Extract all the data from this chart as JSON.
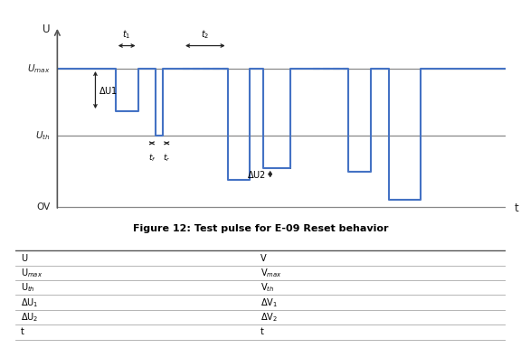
{
  "title": "Figure 12: Test pulse for E-09 Reset behavior",
  "umax": 0.78,
  "uth": 0.4,
  "line_color": "#4472C4",
  "axis_color": "#555555",
  "bg_color": "#ffffff",
  "table_rows": [
    [
      "U",
      "V"
    ],
    [
      "U$_{max}$",
      "V$_{max}$"
    ],
    [
      "U$_{th}$",
      "V$_{th}$"
    ],
    [
      "ΔU$_1$",
      "ΔV$_1$"
    ],
    [
      "ΔU$_2$",
      "ΔV$_2$"
    ],
    [
      "t",
      "t"
    ]
  ],
  "xlim": [
    0,
    100
  ],
  "ylim": [
    -0.05,
    1.05
  ],
  "delta_u1": 0.24,
  "delta_u2": 0.08,
  "deep_level1": 0.15,
  "deep_level2": 0.22,
  "near_zero": 0.04
}
